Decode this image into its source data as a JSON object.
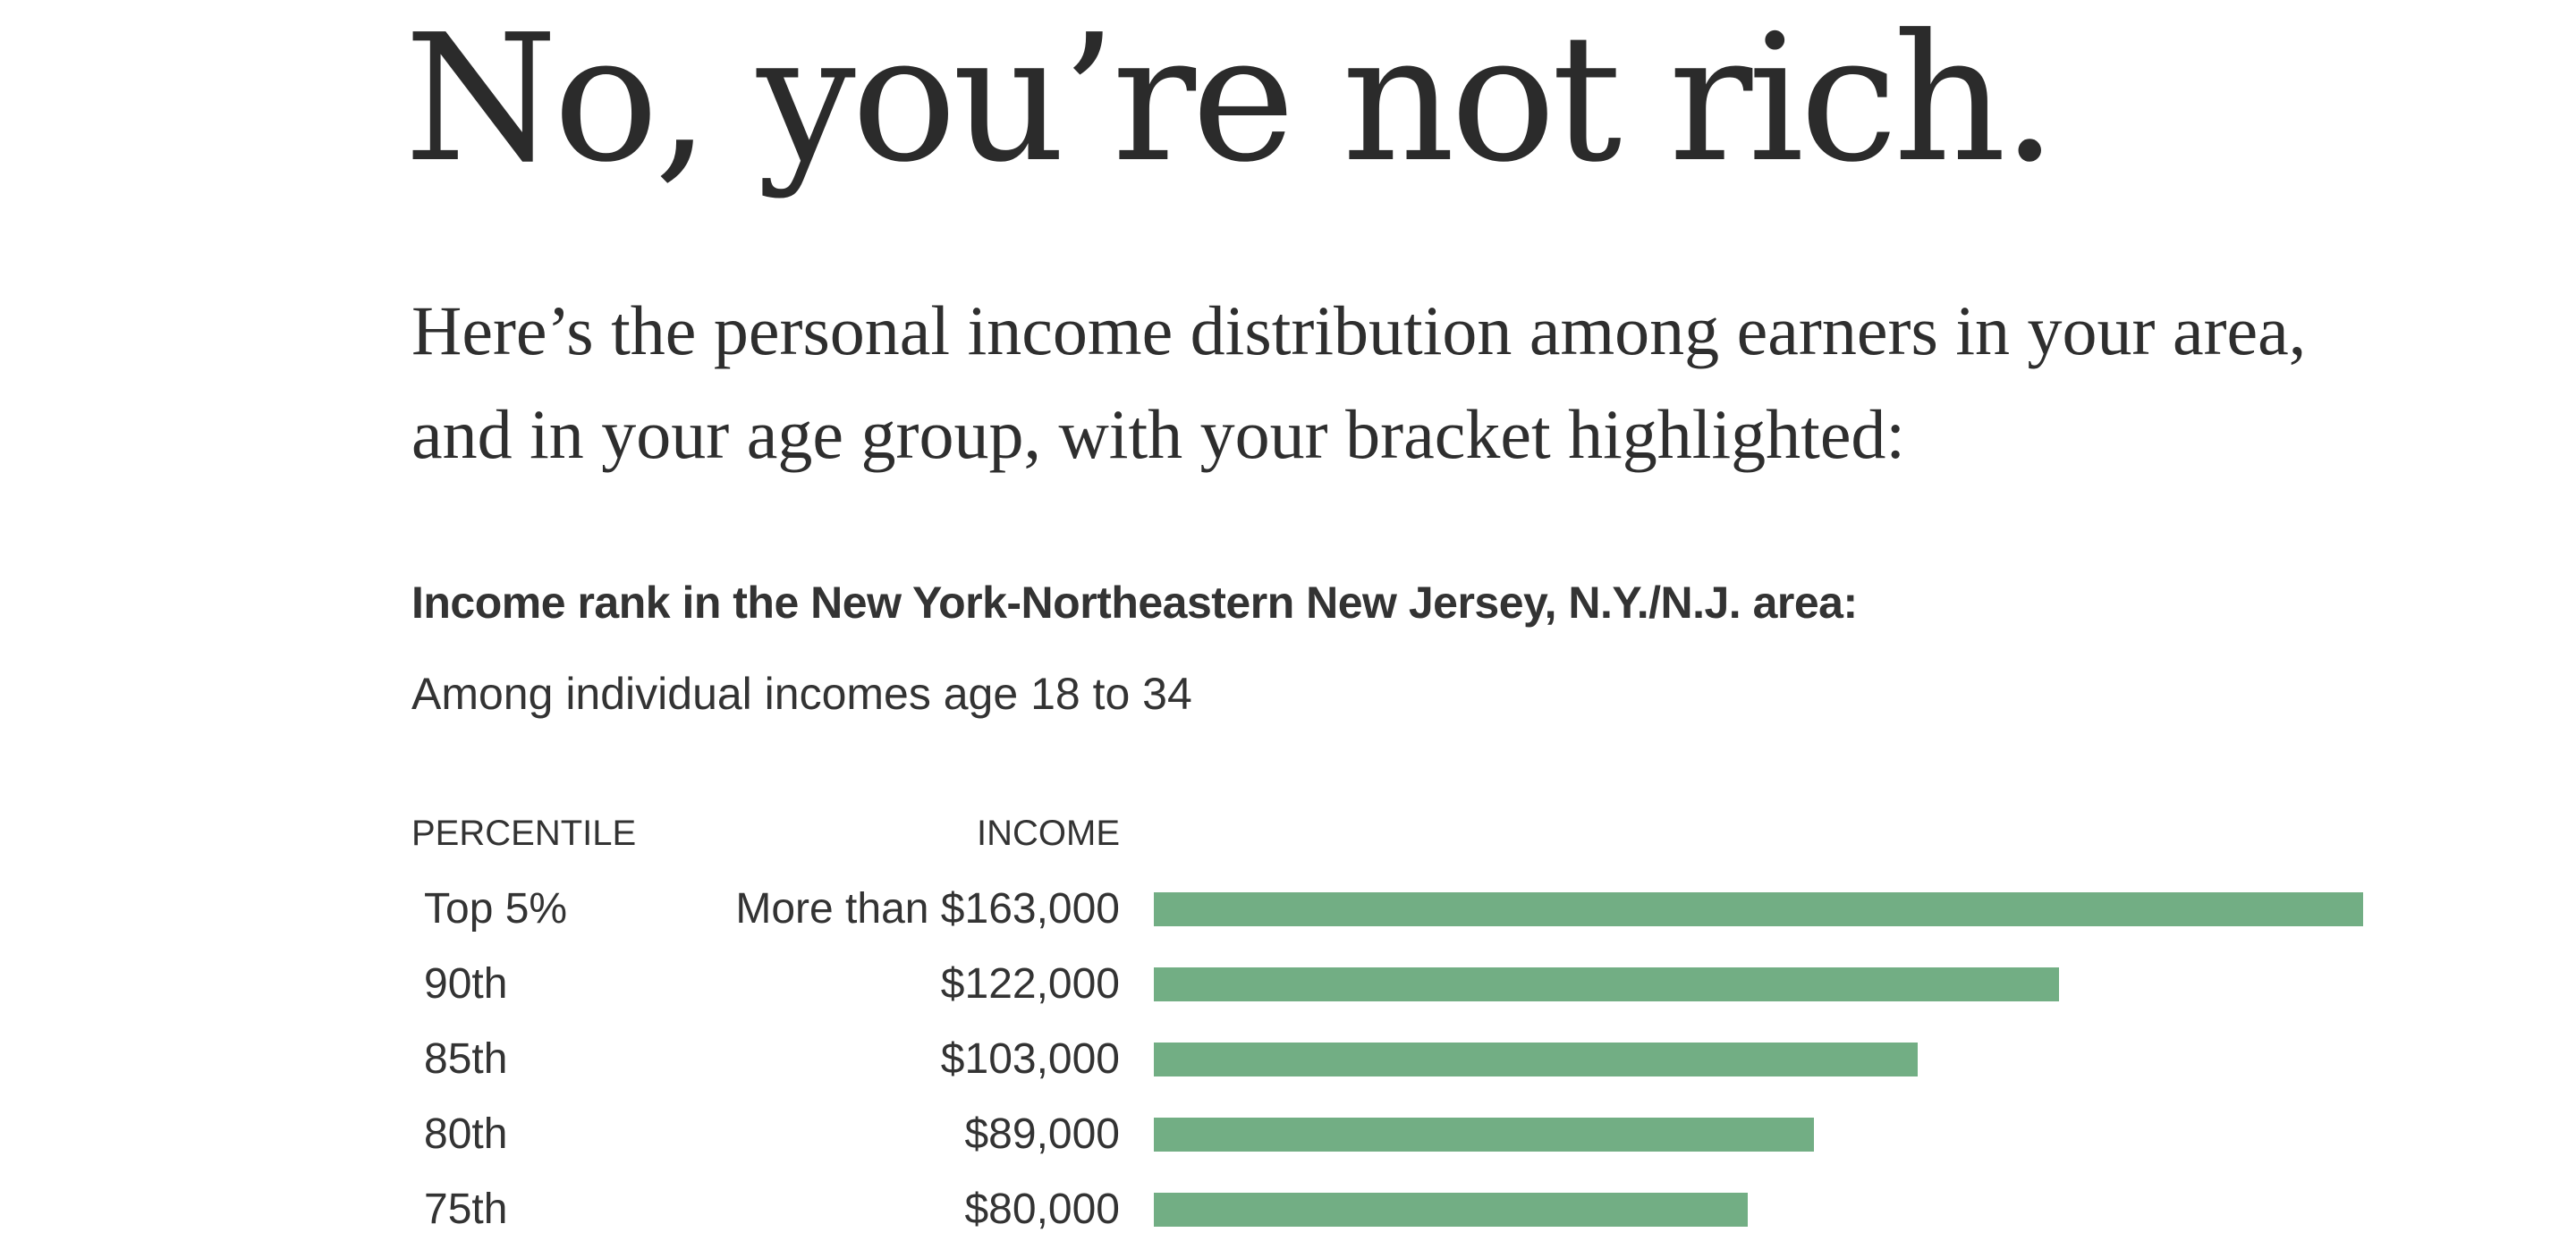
{
  "headline": "No, you’re not rich.",
  "lede": "Here’s the personal income distribution among earners in your area, and in your age group, with your bracket highlighted:",
  "chart_data": {
    "type": "bar",
    "orientation": "horizontal",
    "title": "Income rank in the New York-Northeastern New Jersey, N.Y./N.J. area:",
    "subtitle": "Among individual incomes age 18 to 34",
    "column_headers": {
      "percentile": "PERCENTILE",
      "income": "INCOME"
    },
    "rows": [
      {
        "percentile": "Top 5%",
        "income_label": "More than $163,000",
        "value": 163000
      },
      {
        "percentile": "90th",
        "income_label": "$122,000",
        "value": 122000
      },
      {
        "percentile": "85th",
        "income_label": "$103,000",
        "value": 103000
      },
      {
        "percentile": "80th",
        "income_label": "$89,000",
        "value": 89000
      },
      {
        "percentile": "75th",
        "income_label": "$80,000",
        "value": 80000
      }
    ],
    "xlim": [
      0,
      163000
    ],
    "bar_color": "#72ae84",
    "grid": false
  }
}
